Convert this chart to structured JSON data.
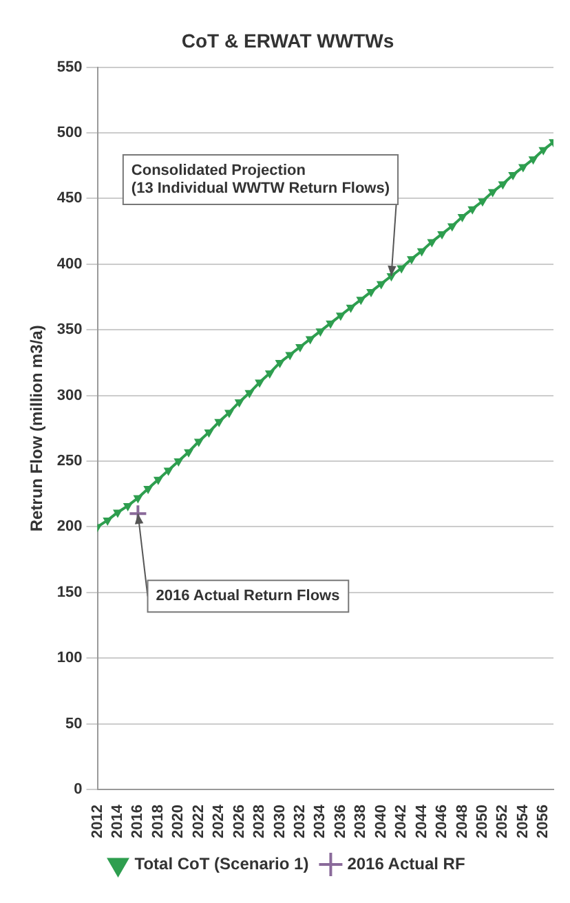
{
  "chart_data": {
    "type": "line",
    "title": "CoT & ERWAT WWTWs",
    "ylabel": "Retrun Flow (million m3/a)",
    "x": [
      2012,
      2013,
      2014,
      2015,
      2016,
      2017,
      2018,
      2019,
      2020,
      2021,
      2022,
      2023,
      2024,
      2025,
      2026,
      2027,
      2028,
      2029,
      2030,
      2031,
      2032,
      2033,
      2034,
      2035,
      2036,
      2037,
      2038,
      2039,
      2040,
      2041,
      2042,
      2043,
      2044,
      2045,
      2046,
      2047,
      2048,
      2049,
      2050,
      2051,
      2052,
      2053,
      2054,
      2055,
      2056,
      2057
    ],
    "series": [
      {
        "name": "Total CoT (Scenario 1)",
        "color": "#2e9e4f",
        "marker": "triangle",
        "values": [
          200,
          205,
          211,
          216,
          222,
          229,
          236,
          243,
          250,
          257,
          265,
          272,
          280,
          287,
          295,
          302,
          310,
          317,
          325,
          331,
          337,
          343,
          349,
          355,
          361,
          367,
          373,
          379,
          385,
          391,
          397,
          404,
          410,
          417,
          423,
          429,
          436,
          442,
          448,
          455,
          461,
          468,
          474,
          480,
          487,
          493
        ]
      },
      {
        "name": "2016 Actual RF",
        "color": "#8a6a9a",
        "marker": "cross",
        "x": [
          2016
        ],
        "values": [
          210
        ]
      }
    ],
    "xlim": [
      2012,
      2057
    ],
    "xticks": [
      2012,
      2014,
      2016,
      2018,
      2020,
      2022,
      2024,
      2026,
      2028,
      2030,
      2032,
      2034,
      2036,
      2038,
      2040,
      2042,
      2044,
      2046,
      2048,
      2050,
      2052,
      2054,
      2056
    ],
    "ylim": [
      0,
      550
    ],
    "yticks": [
      0,
      50,
      100,
      150,
      200,
      250,
      300,
      350,
      400,
      450,
      500,
      550
    ],
    "grid": "y",
    "legend": "bottom",
    "annotations": [
      {
        "text": "Consolidated Projection\n(13 Individual WWTW Return Flows)",
        "x": 2041,
        "y": 391
      },
      {
        "text": "2016 Actual Return Flows",
        "x": 2016,
        "y": 210
      }
    ]
  }
}
